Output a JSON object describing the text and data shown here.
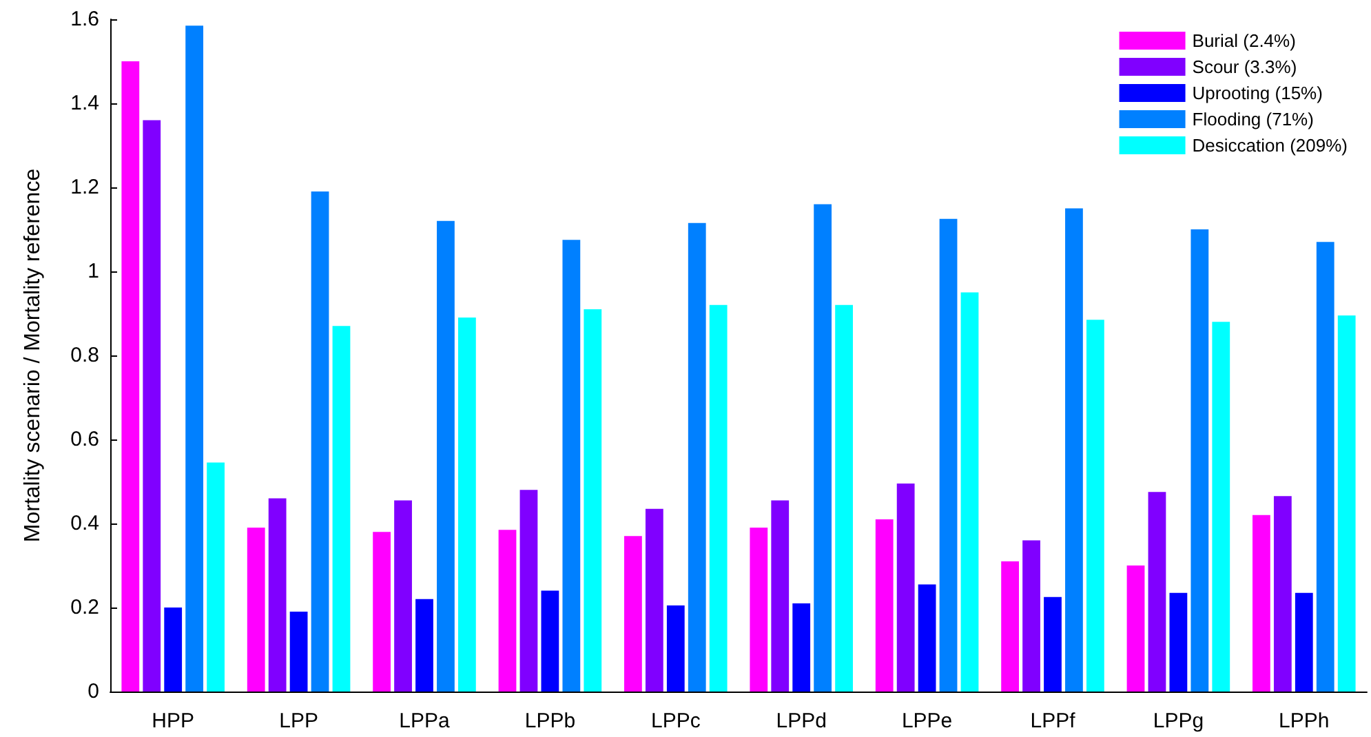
{
  "chart_data": {
    "type": "bar",
    "ylabel": "Mortality scenario / Mortality reference",
    "categories": [
      "HPP",
      "LPP",
      "LPPa",
      "LPPb",
      "LPPc",
      "LPPd",
      "LPPe",
      "LPPf",
      "LPPg",
      "LPPh"
    ],
    "series": [
      {
        "name": "Burial (2.4%)",
        "color": "#ff00ff",
        "values": [
          1.5,
          0.39,
          0.38,
          0.385,
          0.37,
          0.39,
          0.41,
          0.31,
          0.3,
          0.42
        ]
      },
      {
        "name": "Scour (3.3%)",
        "color": "#8000ff",
        "values": [
          1.36,
          0.46,
          0.455,
          0.48,
          0.435,
          0.455,
          0.495,
          0.36,
          0.475,
          0.465
        ]
      },
      {
        "name": "Uprooting (15%)",
        "color": "#0000ff",
        "values": [
          0.2,
          0.19,
          0.22,
          0.24,
          0.205,
          0.21,
          0.255,
          0.225,
          0.235,
          0.235
        ]
      },
      {
        "name": "Flooding (71%)",
        "color": "#0080ff",
        "values": [
          1.585,
          1.19,
          1.12,
          1.075,
          1.115,
          1.16,
          1.125,
          1.15,
          1.1,
          1.07
        ]
      },
      {
        "name": "Desiccation (209%)",
        "color": "#00ffff",
        "values": [
          0.545,
          0.87,
          0.89,
          0.91,
          0.92,
          0.92,
          0.95,
          0.885,
          0.88,
          0.895
        ]
      }
    ],
    "ylim": [
      0,
      1.6
    ],
    "yticks": [
      0,
      0.2,
      0.4,
      0.6,
      0.8,
      1,
      1.2,
      1.4,
      1.6
    ],
    "grid": false,
    "legend": "top right"
  }
}
